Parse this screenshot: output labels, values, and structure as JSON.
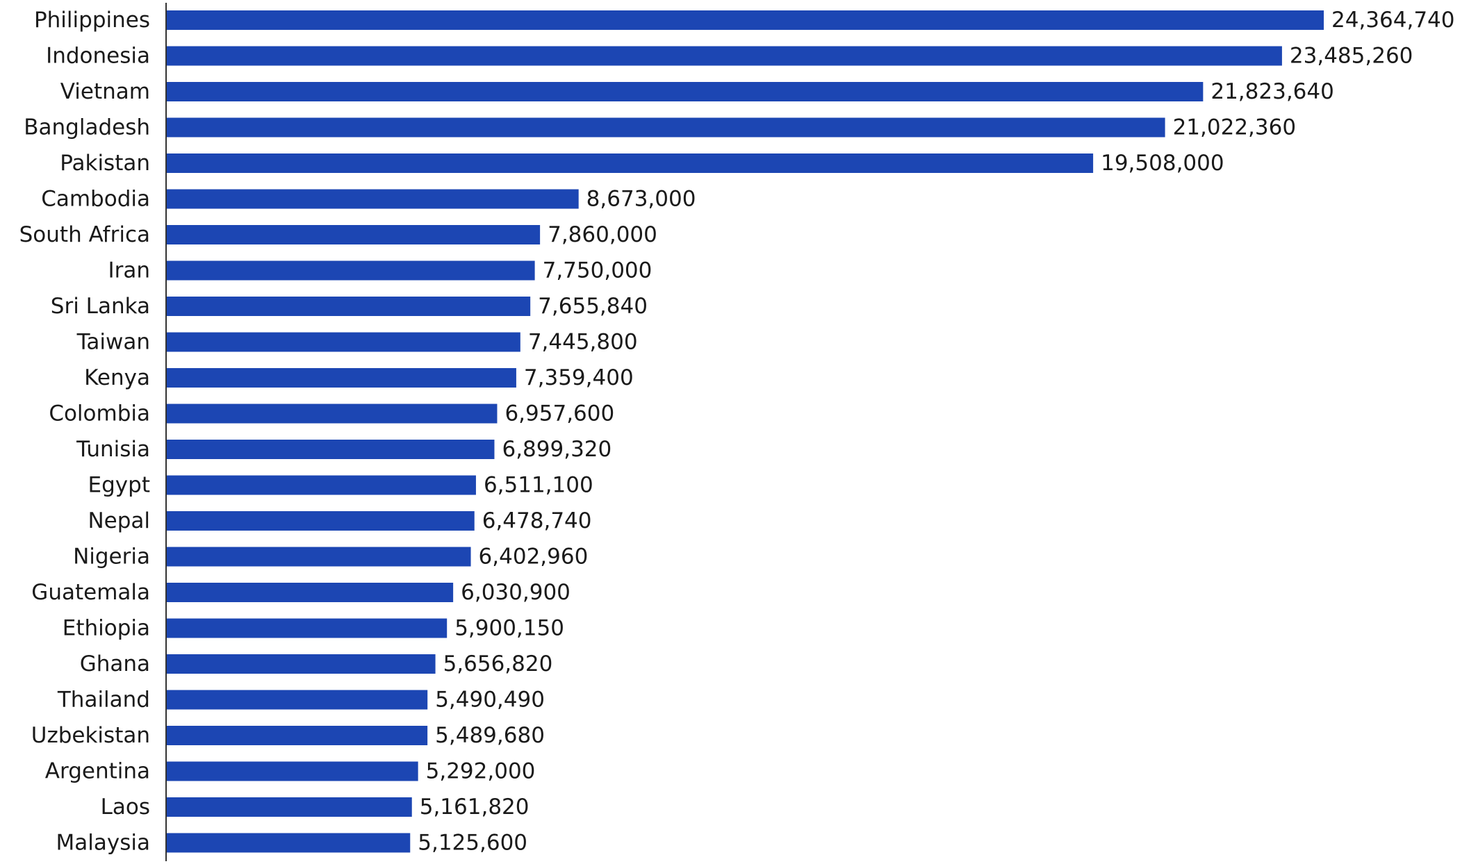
{
  "chart_data": {
    "type": "bar",
    "orientation": "horizontal",
    "title": "",
    "xlabel": "",
    "ylabel": "",
    "grid": false,
    "bar_color": "#1c46b3",
    "axis_color": "#333333",
    "text_color": "#1a1a1a",
    "xlim": [
      0,
      24364740
    ],
    "categories": [
      "Philippines",
      "Indonesia",
      "Vietnam",
      "Bangladesh",
      "Pakistan",
      "Cambodia",
      "South Africa",
      "Iran",
      "Sri Lanka",
      "Taiwan",
      "Kenya",
      "Colombia",
      "Tunisia",
      "Egypt",
      "Nepal",
      "Nigeria",
      "Guatemala",
      "Ethiopia",
      "Ghana",
      "Thailand",
      "Uzbekistan",
      "Argentina",
      "Laos",
      "Malaysia"
    ],
    "values": [
      24364740,
      23485260,
      21823640,
      21022360,
      19508000,
      8673000,
      7860000,
      7750000,
      7655840,
      7445800,
      7359400,
      6957600,
      6899320,
      6511100,
      6478740,
      6402960,
      6030900,
      5900150,
      5656820,
      5490490,
      5489680,
      5292000,
      5161820,
      5125600
    ],
    "value_labels": [
      "24,364,740",
      "23,485,260",
      "21,823,640",
      "21,022,360",
      "19,508,000",
      "8,673,000",
      "7,860,000",
      "7,750,000",
      "7,655,840",
      "7,445,800",
      "7,359,400",
      "6,957,600",
      "6,899,320",
      "6,511,100",
      "6,478,740",
      "6,402,960",
      "6,030,900",
      "5,900,150",
      "5,656,820",
      "5,490,490",
      "5,489,680",
      "5,292,000",
      "5,161,820",
      "5,125,600"
    ]
  }
}
